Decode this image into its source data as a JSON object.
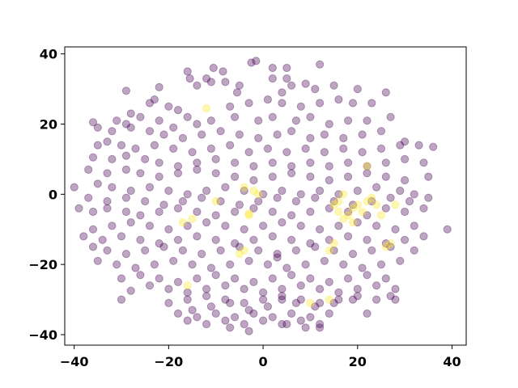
{
  "chart_data": {
    "type": "scatter",
    "title": "",
    "xlabel": "",
    "ylabel": "",
    "xlim": [
      -42,
      43
    ],
    "ylim": [
      -43,
      42
    ],
    "xticks": [
      -40,
      -20,
      0,
      20,
      40
    ],
    "yticks": [
      -40,
      -20,
      0,
      20,
      40
    ],
    "xtick_labels": [
      "−40",
      "−20",
      "0",
      "20",
      "40"
    ],
    "ytick_labels": [
      "−40",
      "−20",
      "0",
      "20",
      "40"
    ],
    "grid": false,
    "legend": "none",
    "colors": {
      "class_0": "#440154",
      "class_1": "#fde725"
    },
    "marker_alpha": 0.35,
    "series": [
      {
        "class": 0,
        "x": [
          -10.5,
          -8.5,
          -2.5,
          -1.5,
          2,
          5,
          12,
          -16,
          -15.5,
          -11,
          -5,
          9,
          2,
          5,
          -29,
          -22,
          -14,
          -12,
          -8,
          -5.5,
          4,
          6,
          11,
          15,
          20,
          26,
          -24,
          -23,
          -20,
          -18,
          -16,
          -7,
          -3,
          1,
          4,
          8,
          12,
          16,
          19,
          23,
          -28,
          -31,
          -29,
          -26,
          -22,
          -19,
          -14,
          -11,
          -6,
          -1,
          2,
          7,
          10,
          14,
          18,
          22,
          27,
          -36,
          -35,
          -32,
          -28,
          -24,
          -21,
          -17,
          -13,
          -9,
          -5,
          -1,
          3,
          6,
          10,
          13,
          17,
          21,
          25,
          30,
          -35,
          -33,
          -30,
          -27,
          -23,
          -19,
          -15,
          -11,
          -7,
          -3,
          1,
          5,
          9,
          13,
          17,
          21,
          25,
          29,
          33,
          36,
          -36,
          -32,
          -29,
          -25,
          -22,
          -18,
          -14,
          -10,
          -6,
          -2,
          2,
          6,
          10,
          14,
          18,
          22,
          26,
          30,
          34,
          -37,
          -33,
          -29,
          -26,
          -22,
          -18,
          -14,
          -10,
          -6,
          -2,
          2,
          6,
          10,
          14,
          18,
          22,
          26,
          30,
          35,
          -40,
          -35,
          -32,
          -28,
          -24,
          -20,
          -16,
          -12,
          -8,
          -4,
          0,
          4,
          8,
          12,
          16,
          20,
          24,
          29,
          32,
          -37,
          -33,
          -29,
          -25,
          -21,
          -17,
          -13,
          -9,
          -5,
          -1,
          3,
          7,
          11,
          15,
          19,
          23,
          27,
          31,
          35,
          -39,
          -36,
          -33,
          -29,
          -26,
          -22,
          -18,
          -14,
          -10,
          -6,
          -2,
          2,
          6,
          10,
          14,
          18,
          22,
          26,
          30,
          34,
          -36,
          -32,
          -28,
          -24,
          -20,
          -16,
          -12,
          -8,
          -4,
          0,
          4,
          8,
          12,
          16,
          20,
          24,
          28,
          32,
          -38,
          -34,
          -30,
          -26,
          -22,
          -18,
          -14,
          -10,
          -6,
          -2,
          2,
          6,
          10,
          14,
          18,
          22,
          26,
          30,
          34,
          39,
          -36,
          -33,
          -29,
          -25,
          -21,
          -17,
          -13,
          -9,
          -5,
          -1,
          3,
          7,
          11,
          15,
          19,
          23,
          27,
          32,
          -35,
          -31,
          -27,
          -23,
          -19,
          -15,
          -11,
          -7,
          -3,
          1,
          5,
          9,
          13,
          17,
          21,
          25,
          29,
          -30,
          -26,
          -22,
          -18,
          -14,
          -10,
          -6,
          -2,
          2,
          6,
          10,
          14,
          18,
          22,
          26,
          -28,
          -24,
          -20,
          -16,
          -12,
          -8,
          -4,
          0,
          4,
          8,
          12,
          16,
          20,
          24,
          28,
          -30,
          -20,
          -16,
          -12,
          -8,
          -4,
          0,
          4,
          8,
          12,
          16,
          20,
          24,
          27,
          -15,
          -11,
          -7,
          -3,
          1,
          3,
          4,
          7,
          11,
          15,
          19,
          -18,
          -14,
          -10,
          -6,
          -2,
          2,
          6,
          10,
          14,
          22,
          28,
          -16,
          -12,
          -8,
          -4,
          0,
          4,
          8,
          12,
          -7,
          -3,
          5,
          9,
          12
        ],
        "y": [
          36,
          35,
          37.5,
          38,
          36,
          36,
          37,
          35,
          33,
          32,
          31,
          31.5,
          33,
          33,
          29.5,
          30.5,
          31,
          33,
          32,
          29,
          29,
          31,
          30,
          31,
          30,
          29,
          26,
          27,
          25,
          24,
          22,
          25,
          26,
          27,
          26,
          25,
          26,
          27,
          26,
          26,
          23,
          21,
          20,
          22,
          21,
          19,
          20,
          21,
          22,
          21,
          22,
          21,
          22,
          20,
          21,
          21,
          22,
          20.5,
          19,
          18,
          19,
          18,
          17,
          16,
          17,
          18,
          17,
          16,
          17,
          18,
          16,
          17,
          16,
          17,
          18,
          15,
          14,
          15,
          14,
          13,
          14,
          13,
          12,
          13,
          14,
          12,
          13,
          12,
          13,
          12,
          13,
          12,
          13,
          14,
          14,
          13.5,
          10.5,
          10,
          11,
          10,
          9,
          8,
          9,
          10,
          9,
          8,
          9,
          8,
          9,
          8,
          9,
          8,
          9,
          10,
          9,
          7,
          6,
          7,
          6,
          5,
          6,
          7,
          6,
          5,
          4,
          5,
          6,
          5,
          4,
          5,
          6,
          5,
          4,
          5,
          2,
          3,
          2,
          1,
          2,
          1,
          0,
          1,
          2,
          1,
          0,
          1,
          0,
          1,
          0,
          1,
          2,
          1,
          0,
          -1,
          -2,
          -1,
          -2,
          -3,
          -2,
          -1,
          -2,
          -3,
          -2,
          -1,
          -2,
          -1,
          -2,
          -3,
          -2,
          -1,
          -2,
          -1,
          -4,
          -5,
          -4,
          -5,
          -6,
          -5,
          -4,
          -5,
          -6,
          -5,
          -4,
          -5,
          -6,
          -5,
          -4,
          -5,
          -6,
          -4,
          -5,
          -4,
          -10,
          -9,
          -8,
          -9,
          -10,
          -9,
          -8,
          -9,
          -10,
          -9,
          -8,
          -9,
          -10,
          -9,
          -8,
          -9,
          -10,
          -9,
          -12,
          -13,
          -12,
          -13,
          -14,
          -13,
          -12,
          -13,
          -14,
          -13,
          -12,
          -13,
          -14,
          -13,
          -12,
          -13,
          -14,
          -13,
          -12,
          -10,
          -15,
          -16,
          -17,
          -16,
          -15,
          -16,
          -17,
          -16,
          -15,
          -16,
          -17,
          -16,
          -15,
          -16,
          -17,
          -16,
          -15,
          -16,
          -19,
          -20,
          -21,
          -20,
          -19,
          -20,
          -21,
          -20,
          -19,
          -20,
          -21,
          -20,
          -19,
          -20,
          -21,
          -20,
          -19,
          -24,
          -23,
          -24,
          -25,
          -24,
          -23,
          -24,
          -25,
          -24,
          -23,
          -24,
          -25,
          -24,
          -23,
          -24,
          -27.5,
          -26,
          -27,
          -28,
          -27,
          -26,
          -27,
          -28,
          -27,
          -26,
          -27,
          -28,
          -27,
          -26,
          -27,
          -30,
          -31,
          -30,
          -29,
          -30,
          -31,
          -30,
          -29,
          -30,
          -31,
          -30,
          -29,
          -30,
          -29,
          -33,
          -32,
          -31,
          -33,
          -32,
          -18,
          -30,
          -31,
          -32,
          -31,
          -30,
          -34,
          -35,
          -34,
          -35,
          -34,
          -35,
          -34,
          -35,
          -34,
          -34,
          -30,
          -36,
          -37,
          -36,
          -37,
          -36,
          -37,
          -36,
          -37,
          -38,
          -39,
          -37,
          -38,
          -38
        ]
      },
      {
        "class": 1,
        "x": [
          -12,
          -3,
          -2,
          -1,
          -4,
          -5,
          -15,
          -16,
          -10,
          -3,
          -4,
          -17,
          10,
          14,
          15,
          16,
          17,
          16,
          18,
          19,
          20,
          17,
          19,
          21,
          22,
          23,
          24,
          25,
          26,
          27,
          28,
          22,
          14,
          15
        ],
        "y": [
          24.5,
          -5.5,
          1,
          0,
          -16,
          -17,
          -7,
          -26,
          -2,
          -6,
          2,
          -8,
          -31,
          -30,
          -3,
          -2,
          0,
          -5,
          -6,
          -4,
          -3,
          -7,
          -8,
          -5,
          -2,
          -1,
          -3,
          -6,
          -15,
          -14,
          -3,
          8,
          -16,
          -14
        ]
      }
    ]
  }
}
